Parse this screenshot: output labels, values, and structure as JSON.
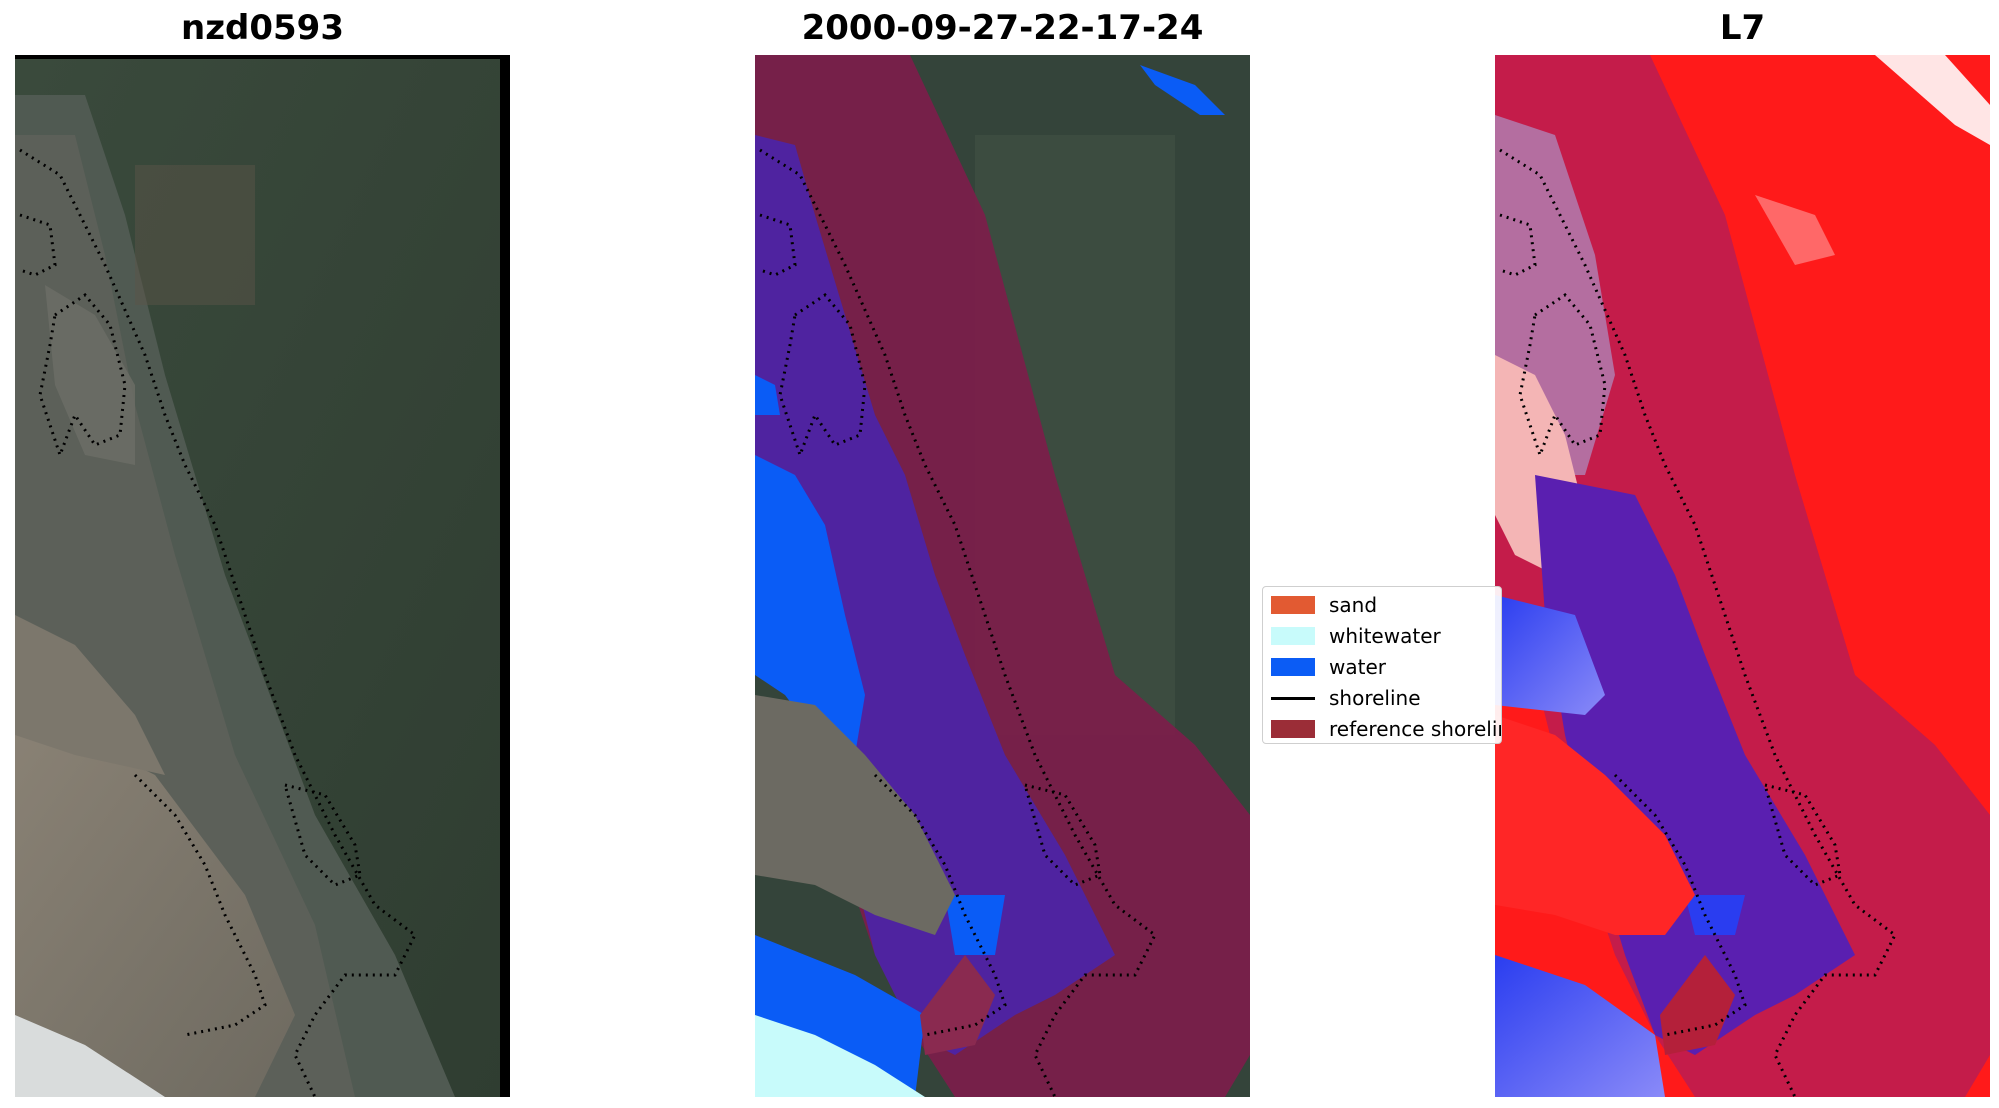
{
  "panels": [
    {
      "title": "nzd0593"
    },
    {
      "title": "2000-09-27-22-17-24"
    },
    {
      "title": "L7"
    }
  ],
  "legend": {
    "items": [
      {
        "label": "sand",
        "color": "#e25a32",
        "kind": "patch"
      },
      {
        "label": "whitewater",
        "color": "#c8fbfb",
        "kind": "patch"
      },
      {
        "label": "water",
        "color": "#0b5cf5",
        "kind": "patch"
      },
      {
        "label": "shoreline",
        "color": "#000000",
        "kind": "line"
      },
      {
        "label": "reference shoreline",
        "color": "#9b2d37",
        "kind": "patch"
      }
    ]
  }
}
